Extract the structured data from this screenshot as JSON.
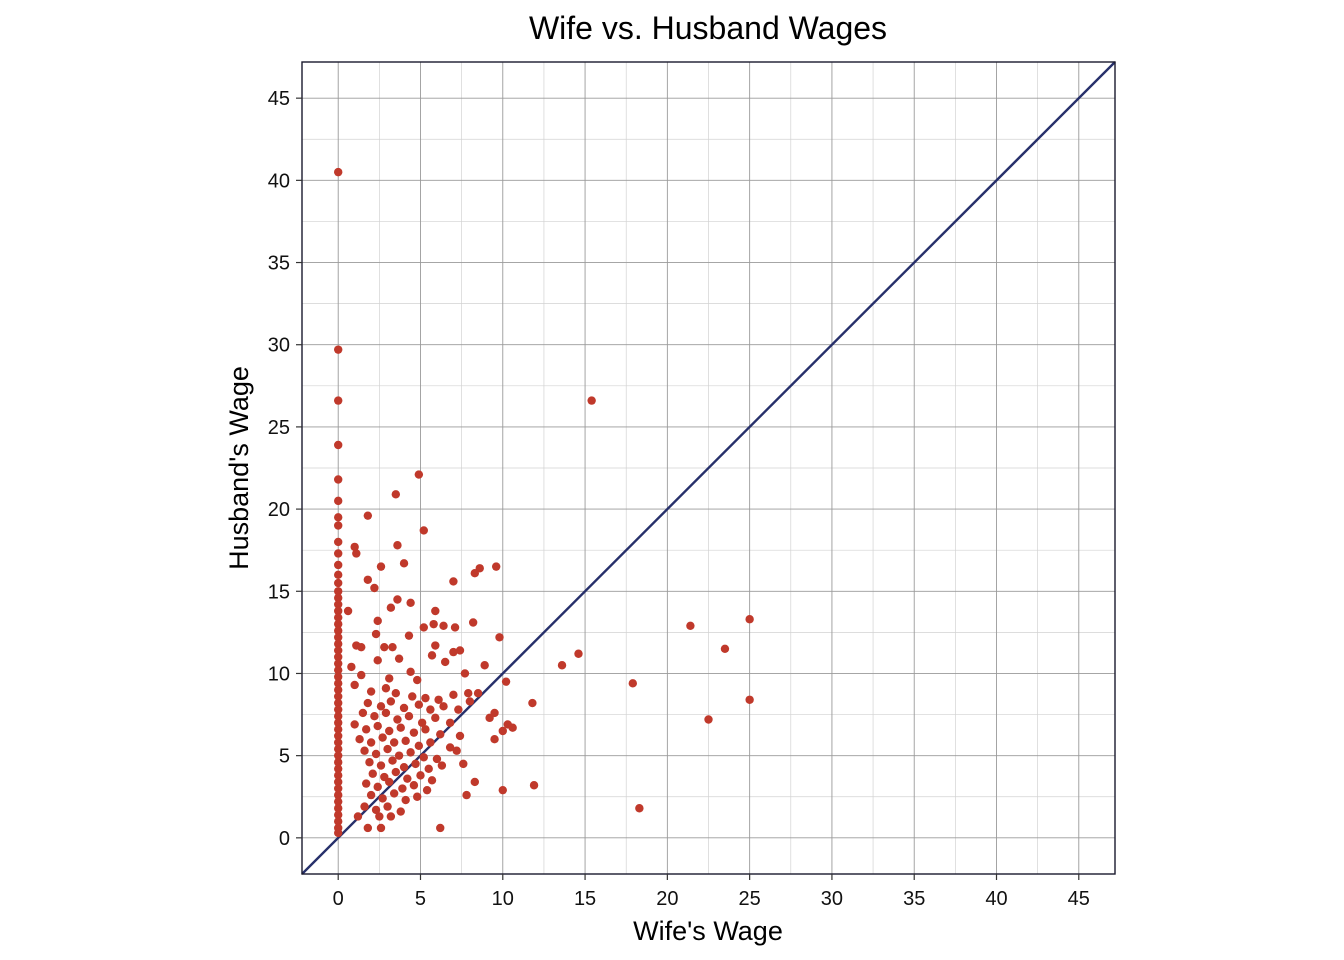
{
  "chart_data": {
    "type": "scatter",
    "title": "Wife vs. Husband Wages",
    "xlabel": "Wife's Wage",
    "ylabel": "Husband's Wage",
    "xlim": [
      -2.2,
      47.2
    ],
    "ylim": [
      -2.2,
      47.2
    ],
    "x_ticks": [
      0,
      5,
      10,
      15,
      20,
      25,
      30,
      35,
      40,
      45
    ],
    "y_ticks": [
      0,
      5,
      10,
      15,
      20,
      25,
      30,
      35,
      40,
      45
    ],
    "grid": true,
    "reference_line": {
      "type": "y = x",
      "color": "#27306b"
    },
    "point_color": "#c0392b",
    "series": [
      {
        "points": [
          [
            0,
            40.5
          ],
          [
            0,
            29.7
          ],
          [
            0,
            26.6
          ],
          [
            0,
            23.9
          ],
          [
            0,
            21.8
          ],
          [
            0,
            20.5
          ],
          [
            0,
            19.5
          ],
          [
            0,
            19.0
          ],
          [
            0,
            18.0
          ],
          [
            0,
            17.3
          ],
          [
            0,
            16.6
          ],
          [
            0,
            16.0
          ],
          [
            0,
            15.5
          ],
          [
            0,
            15.0
          ],
          [
            0,
            14.6
          ],
          [
            0,
            14.2
          ],
          [
            0,
            13.8
          ],
          [
            0,
            13.4
          ],
          [
            0,
            13.0
          ],
          [
            0,
            12.6
          ],
          [
            0,
            12.2
          ],
          [
            0,
            11.8
          ],
          [
            0,
            11.4
          ],
          [
            0,
            11.0
          ],
          [
            0,
            10.6
          ],
          [
            0,
            10.2
          ],
          [
            0,
            9.8
          ],
          [
            0,
            9.4
          ],
          [
            0,
            9.0
          ],
          [
            0,
            8.6
          ],
          [
            0,
            8.2
          ],
          [
            0,
            7.8
          ],
          [
            0,
            7.4
          ],
          [
            0,
            7.0
          ],
          [
            0,
            6.6
          ],
          [
            0,
            6.2
          ],
          [
            0,
            5.8
          ],
          [
            0,
            5.4
          ],
          [
            0,
            5.0
          ],
          [
            0,
            4.6
          ],
          [
            0,
            4.2
          ],
          [
            0,
            3.8
          ],
          [
            0,
            3.4
          ],
          [
            0,
            3.0
          ],
          [
            0,
            2.6
          ],
          [
            0,
            2.2
          ],
          [
            0,
            1.8
          ],
          [
            0,
            1.4
          ],
          [
            0,
            1.0
          ],
          [
            0,
            0.6
          ],
          [
            0,
            0.3
          ],
          [
            15.4,
            26.6
          ],
          [
            4.9,
            22.1
          ],
          [
            3.5,
            20.9
          ],
          [
            5.2,
            18.7
          ],
          [
            1.8,
            19.6
          ],
          [
            3.6,
            17.8
          ],
          [
            1.0,
            17.7
          ],
          [
            1.1,
            17.3
          ],
          [
            4.0,
            16.7
          ],
          [
            2.6,
            16.5
          ],
          [
            8.6,
            16.4
          ],
          [
            9.6,
            16.5
          ],
          [
            8.3,
            16.1
          ],
          [
            7.0,
            15.6
          ],
          [
            1.8,
            15.7
          ],
          [
            2.2,
            15.2
          ],
          [
            3.6,
            14.5
          ],
          [
            4.4,
            14.3
          ],
          [
            3.2,
            14.0
          ],
          [
            0.6,
            13.8
          ],
          [
            5.9,
            13.8
          ],
          [
            8.2,
            13.1
          ],
          [
            2.4,
            13.2
          ],
          [
            5.8,
            13.0
          ],
          [
            6.4,
            12.9
          ],
          [
            5.2,
            12.8
          ],
          [
            7.1,
            12.8
          ],
          [
            2.3,
            12.4
          ],
          [
            4.3,
            12.3
          ],
          [
            9.8,
            12.2
          ],
          [
            1.1,
            11.7
          ],
          [
            1.4,
            11.6
          ],
          [
            2.8,
            11.6
          ],
          [
            3.3,
            11.6
          ],
          [
            5.9,
            11.7
          ],
          [
            7.0,
            11.3
          ],
          [
            7.4,
            11.4
          ],
          [
            5.7,
            11.1
          ],
          [
            6.5,
            10.7
          ],
          [
            8.9,
            10.5
          ],
          [
            0.8,
            10.4
          ],
          [
            2.4,
            10.8
          ],
          [
            3.7,
            10.9
          ],
          [
            4.4,
            10.1
          ],
          [
            1.4,
            9.9
          ],
          [
            3.1,
            9.7
          ],
          [
            4.8,
            9.6
          ],
          [
            7.7,
            10.0
          ],
          [
            10.2,
            9.5
          ],
          [
            1.0,
            9.3
          ],
          [
            2.0,
            8.9
          ],
          [
            2.9,
            9.1
          ],
          [
            3.5,
            8.8
          ],
          [
            4.5,
            8.6
          ],
          [
            5.3,
            8.5
          ],
          [
            6.1,
            8.4
          ],
          [
            7.0,
            8.7
          ],
          [
            7.9,
            8.8
          ],
          [
            8.5,
            8.8
          ],
          [
            1.8,
            8.2
          ],
          [
            2.6,
            8.0
          ],
          [
            3.2,
            8.3
          ],
          [
            4.0,
            7.9
          ],
          [
            4.9,
            8.1
          ],
          [
            5.6,
            7.8
          ],
          [
            6.4,
            8.0
          ],
          [
            7.3,
            7.8
          ],
          [
            8.0,
            8.3
          ],
          [
            9.5,
            7.6
          ],
          [
            11.8,
            8.2
          ],
          [
            1.5,
            7.6
          ],
          [
            2.2,
            7.4
          ],
          [
            2.9,
            7.6
          ],
          [
            3.6,
            7.2
          ],
          [
            4.3,
            7.4
          ],
          [
            5.1,
            7.0
          ],
          [
            5.9,
            7.3
          ],
          [
            6.8,
            7.0
          ],
          [
            9.2,
            7.3
          ],
          [
            10.3,
            6.9
          ],
          [
            10.6,
            6.7
          ],
          [
            10.0,
            6.5
          ],
          [
            1.0,
            6.9
          ],
          [
            1.7,
            6.6
          ],
          [
            2.4,
            6.8
          ],
          [
            3.1,
            6.5
          ],
          [
            3.8,
            6.7
          ],
          [
            4.6,
            6.4
          ],
          [
            5.3,
            6.6
          ],
          [
            6.2,
            6.3
          ],
          [
            7.4,
            6.2
          ],
          [
            1.3,
            6.0
          ],
          [
            2.0,
            5.8
          ],
          [
            2.7,
            6.1
          ],
          [
            3.4,
            5.8
          ],
          [
            4.1,
            5.9
          ],
          [
            4.9,
            5.6
          ],
          [
            5.6,
            5.8
          ],
          [
            6.8,
            5.5
          ],
          [
            9.5,
            6.0
          ],
          [
            1.6,
            5.3
          ],
          [
            2.3,
            5.1
          ],
          [
            3.0,
            5.4
          ],
          [
            3.7,
            5.0
          ],
          [
            4.4,
            5.2
          ],
          [
            5.2,
            4.9
          ],
          [
            6.0,
            4.8
          ],
          [
            7.2,
            5.3
          ],
          [
            1.9,
            4.6
          ],
          [
            2.6,
            4.4
          ],
          [
            3.3,
            4.7
          ],
          [
            4.0,
            4.3
          ],
          [
            4.7,
            4.5
          ],
          [
            5.5,
            4.2
          ],
          [
            6.3,
            4.4
          ],
          [
            7.6,
            4.5
          ],
          [
            2.1,
            3.9
          ],
          [
            2.8,
            3.7
          ],
          [
            3.5,
            4.0
          ],
          [
            4.2,
            3.6
          ],
          [
            5.0,
            3.8
          ],
          [
            5.7,
            3.5
          ],
          [
            1.7,
            3.3
          ],
          [
            2.4,
            3.1
          ],
          [
            3.1,
            3.4
          ],
          [
            3.9,
            3.0
          ],
          [
            4.6,
            3.2
          ],
          [
            5.4,
            2.9
          ],
          [
            8.3,
            3.4
          ],
          [
            2.0,
            2.6
          ],
          [
            2.7,
            2.4
          ],
          [
            3.4,
            2.7
          ],
          [
            4.1,
            2.3
          ],
          [
            4.8,
            2.5
          ],
          [
            1.6,
            1.9
          ],
          [
            2.3,
            1.7
          ],
          [
            3.0,
            1.9
          ],
          [
            3.8,
            1.6
          ],
          [
            1.2,
            1.3
          ],
          [
            2.5,
            1.3
          ],
          [
            3.2,
            1.3
          ],
          [
            1.8,
            0.6
          ],
          [
            2.6,
            0.6
          ],
          [
            6.2,
            0.6
          ],
          [
            7.8,
            2.6
          ],
          [
            10.0,
            2.9
          ],
          [
            11.9,
            3.2
          ],
          [
            18.3,
            1.8
          ],
          [
            13.6,
            10.5
          ],
          [
            14.6,
            11.2
          ],
          [
            17.9,
            9.4
          ],
          [
            21.4,
            12.9
          ],
          [
            23.5,
            11.5
          ],
          [
            25.0,
            13.3
          ],
          [
            25.0,
            8.4
          ],
          [
            22.5,
            7.2
          ]
        ]
      }
    ]
  }
}
